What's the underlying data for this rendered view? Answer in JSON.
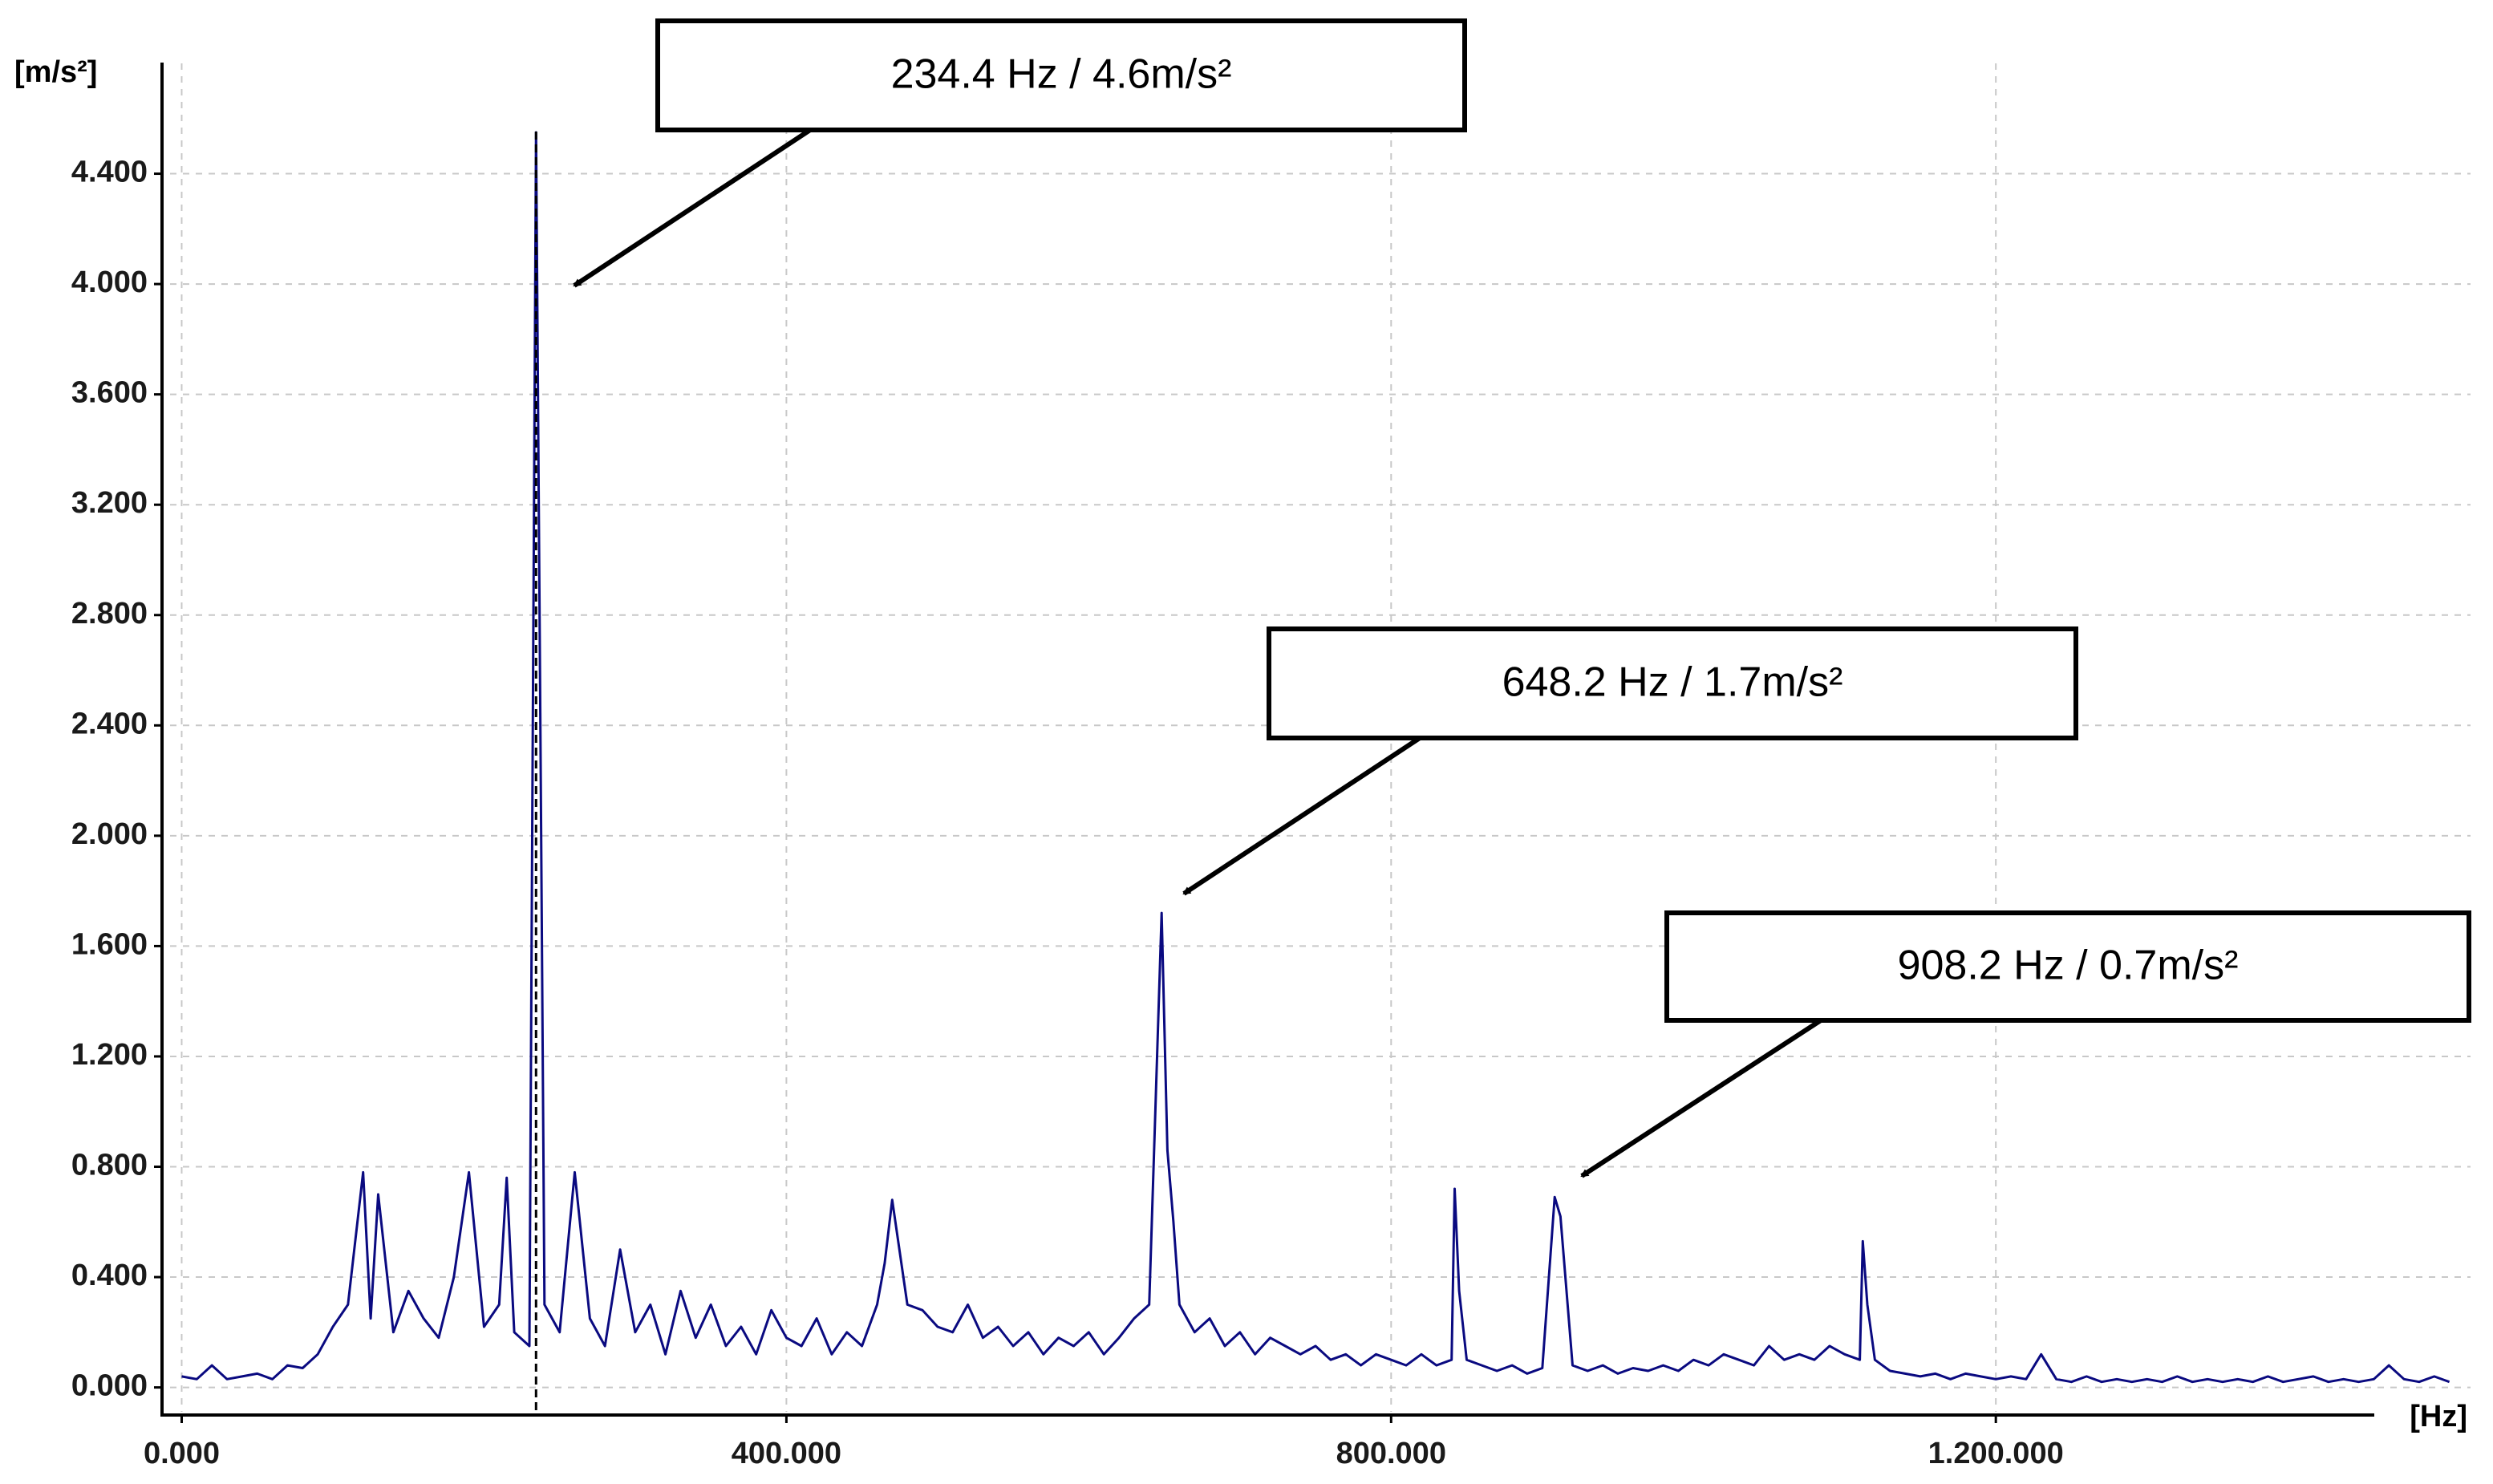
{
  "chart_data": {
    "type": "line",
    "y_label": "[m/s²]",
    "x_label": "[Hz]",
    "xlim": [
      -13,
      1514
    ],
    "ylim": [
      -0.1,
      4.8
    ],
    "xticks": [
      {
        "value": 0,
        "label": "0.000"
      },
      {
        "value": 400,
        "label": "400.000"
      },
      {
        "value": 800,
        "label": "800.000"
      },
      {
        "value": 1200,
        "label": "1.200.000"
      }
    ],
    "yticks": [
      {
        "value": 0,
        "label": "0.000"
      },
      {
        "value": 0.4,
        "label": "0.400"
      },
      {
        "value": 0.8,
        "label": "0.800"
      },
      {
        "value": 1.2,
        "label": "1.200"
      },
      {
        "value": 1.6,
        "label": "1.600"
      },
      {
        "value": 2.0,
        "label": "2.000"
      },
      {
        "value": 2.4,
        "label": "2.400"
      },
      {
        "value": 2.8,
        "label": "2.800"
      },
      {
        "value": 3.2,
        "label": "3.200"
      },
      {
        "value": 3.6,
        "label": "3.600"
      },
      {
        "value": 4.0,
        "label": "4.000"
      },
      {
        "value": 4.4,
        "label": "4.400"
      }
    ],
    "grid": true,
    "annotations": [
      {
        "text": "234.4 Hz / 4.6m/s²"
      },
      {
        "text": "648.2 Hz / 1.7m/s²"
      },
      {
        "text": "908.2 Hz / 0.7m/s²"
      }
    ],
    "series": [
      {
        "color": "#0a0a80",
        "x": [
          0,
          10,
          20,
          30,
          40,
          50,
          60,
          70,
          80,
          90,
          100,
          110,
          120,
          125,
          130,
          140,
          150,
          160,
          170,
          180,
          190,
          200,
          210,
          215,
          220,
          230,
          234.4,
          237,
          240,
          250,
          260,
          270,
          280,
          290,
          300,
          310,
          320,
          330,
          340,
          350,
          360,
          370,
          380,
          390,
          400,
          410,
          420,
          430,
          440,
          450,
          460,
          465,
          470,
          480,
          490,
          500,
          510,
          520,
          530,
          540,
          550,
          560,
          570,
          580,
          590,
          600,
          610,
          620,
          630,
          640,
          648.2,
          652,
          656,
          660,
          670,
          680,
          690,
          700,
          710,
          720,
          730,
          740,
          750,
          760,
          770,
          780,
          790,
          800,
          810,
          820,
          830,
          840,
          842,
          845,
          850,
          860,
          870,
          880,
          890,
          900,
          908.2,
          912,
          920,
          930,
          940,
          950,
          960,
          970,
          980,
          990,
          1000,
          1010,
          1020,
          1030,
          1040,
          1050,
          1060,
          1070,
          1080,
          1090,
          1100,
          1110,
          1112,
          1115,
          1120,
          1130,
          1140,
          1150,
          1160,
          1170,
          1180,
          1190,
          1200,
          1210,
          1220,
          1230,
          1240,
          1250,
          1260,
          1270,
          1280,
          1290,
          1300,
          1310,
          1320,
          1330,
          1340,
          1350,
          1360,
          1370,
          1380,
          1390,
          1400,
          1410,
          1420,
          1430,
          1440,
          1450,
          1460,
          1470,
          1480,
          1490,
          1500
        ],
        "values": [
          0.04,
          0.03,
          0.08,
          0.03,
          0.04,
          0.05,
          0.03,
          0.08,
          0.07,
          0.12,
          0.22,
          0.3,
          0.78,
          0.25,
          0.7,
          0.2,
          0.35,
          0.25,
          0.18,
          0.4,
          0.78,
          0.22,
          0.3,
          0.76,
          0.2,
          0.15,
          4.55,
          2.6,
          0.3,
          0.2,
          0.78,
          0.25,
          0.15,
          0.5,
          0.2,
          0.3,
          0.12,
          0.35,
          0.18,
          0.3,
          0.15,
          0.22,
          0.12,
          0.28,
          0.18,
          0.15,
          0.25,
          0.12,
          0.2,
          0.15,
          0.3,
          0.45,
          0.68,
          0.3,
          0.28,
          0.22,
          0.2,
          0.3,
          0.18,
          0.22,
          0.15,
          0.2,
          0.12,
          0.18,
          0.15,
          0.2,
          0.12,
          0.18,
          0.25,
          0.3,
          1.72,
          0.86,
          0.6,
          0.3,
          0.2,
          0.25,
          0.15,
          0.2,
          0.12,
          0.18,
          0.15,
          0.12,
          0.15,
          0.1,
          0.12,
          0.08,
          0.12,
          0.1,
          0.08,
          0.12,
          0.08,
          0.1,
          0.72,
          0.35,
          0.1,
          0.08,
          0.06,
          0.08,
          0.05,
          0.07,
          0.69,
          0.62,
          0.08,
          0.06,
          0.08,
          0.05,
          0.07,
          0.06,
          0.08,
          0.06,
          0.1,
          0.08,
          0.12,
          0.1,
          0.08,
          0.15,
          0.1,
          0.12,
          0.1,
          0.15,
          0.12,
          0.1,
          0.53,
          0.3,
          0.1,
          0.06,
          0.05,
          0.04,
          0.05,
          0.03,
          0.05,
          0.04,
          0.03,
          0.04,
          0.03,
          0.12,
          0.03,
          0.02,
          0.04,
          0.02,
          0.03,
          0.02,
          0.03,
          0.02,
          0.04,
          0.02,
          0.03,
          0.02,
          0.03,
          0.02,
          0.04,
          0.02,
          0.03,
          0.04,
          0.02,
          0.03,
          0.02,
          0.03,
          0.08,
          0.03,
          0.02,
          0.04,
          0.02
        ]
      }
    ]
  }
}
